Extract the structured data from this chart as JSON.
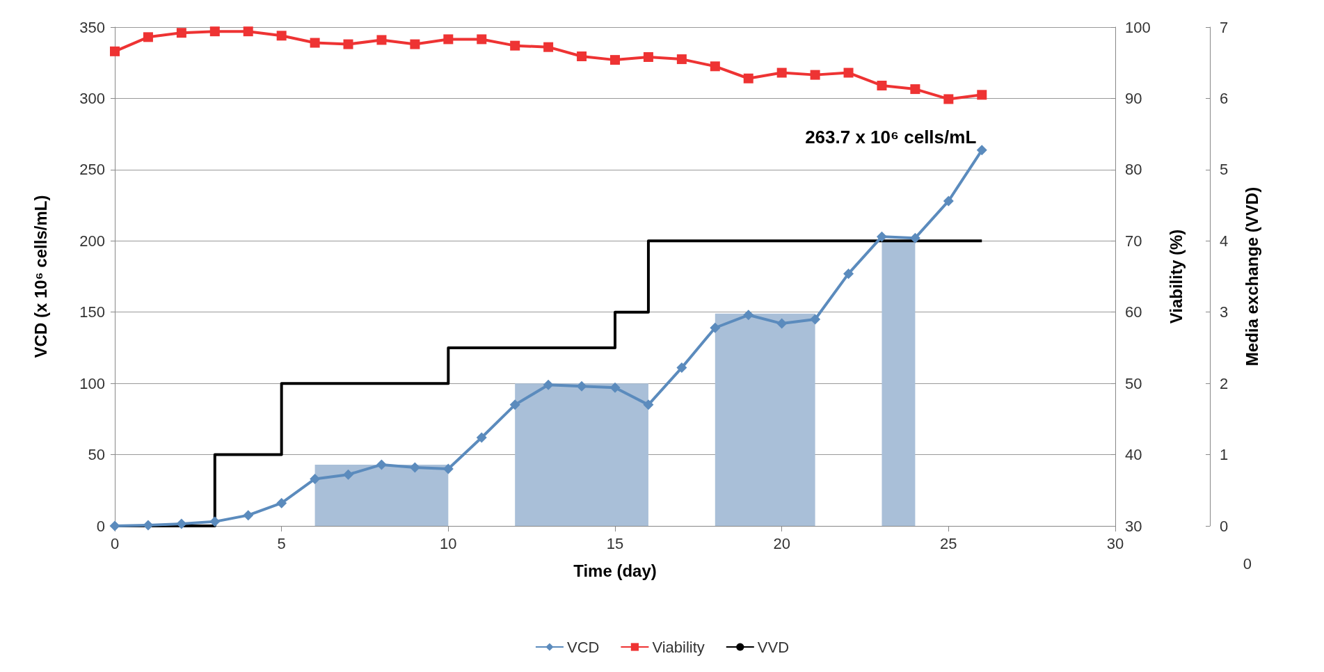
{
  "chart_data": {
    "type": "line",
    "xlabel": "Time (day)",
    "ylabel": "VCD (x 10⁶ cells/mL)",
    "y2label": "Viability (%)",
    "y3label": "Media exchange (VVD)",
    "xlim": [
      0,
      30
    ],
    "xticks": [
      0,
      5,
      10,
      15,
      20,
      25,
      30
    ],
    "ylim": [
      0,
      350
    ],
    "yticks": [
      0,
      50,
      100,
      150,
      200,
      250,
      300,
      350
    ],
    "y2lim": [
      30,
      100
    ],
    "y2ticks": [
      30,
      40,
      50,
      60,
      70,
      80,
      90,
      100
    ],
    "y3lim": [
      0,
      7
    ],
    "y3ticks": [
      0,
      1,
      2,
      3,
      4,
      5,
      6,
      7
    ],
    "grid": "y",
    "legend": "bottom",
    "annotations": [
      {
        "text": "263.7 x 10⁶ cells/mL",
        "x": 26,
        "y": 263.7
      },
      "0"
    ],
    "series": [
      {
        "type": "area",
        "color": "#a9bfd8",
        "x": [
          6,
          10,
          11,
          12,
          16,
          17,
          18,
          21,
          22,
          23,
          24
        ],
        "values": [
          43,
          43,
          null,
          100,
          100,
          null,
          149,
          149,
          null,
          200,
          200
        ]
      },
      {
        "name": "VCD",
        "color": "#5b8bbd",
        "marker": "diamond",
        "x": [
          0,
          1,
          2,
          3,
          4,
          5,
          6,
          7,
          8,
          9,
          10,
          11,
          12,
          13,
          14,
          15,
          16,
          17,
          18,
          19,
          20,
          21,
          22,
          23,
          24,
          25,
          26
        ],
        "values": [
          0,
          0.5,
          1.5,
          3,
          7.5,
          16,
          33,
          36,
          43,
          41,
          40,
          62,
          85,
          99,
          98,
          97,
          85,
          111,
          139,
          148,
          142,
          145,
          177,
          203,
          202,
          228,
          263.7
        ]
      },
      {
        "name": "Viability",
        "type": "line",
        "axis": "y2",
        "color": "#ee3333",
        "marker": "square",
        "x": [
          0,
          1,
          2,
          3,
          4,
          5,
          6,
          7,
          8,
          9,
          10,
          11,
          12,
          13,
          14,
          15,
          16,
          17,
          18,
          19,
          20,
          21,
          22,
          23,
          24,
          25,
          26
        ],
        "values": [
          96.6,
          98.6,
          99.2,
          99.4,
          99.4,
          98.8,
          97.8,
          97.6,
          98.2,
          97.6,
          98.3,
          98.3,
          97.4,
          97.2,
          95.9,
          95.4,
          95.8,
          95.5,
          94.5,
          92.8,
          93.6,
          93.3,
          93.6,
          91.8,
          91.3,
          89.9,
          90.5
        ]
      },
      {
        "name": "VVD",
        "type": "step",
        "axis": "y3",
        "color": "#000000",
        "marker": "none",
        "x": [
          0,
          3,
          5,
          10,
          15,
          16,
          26
        ],
        "values": [
          0,
          1,
          2,
          2.5,
          3,
          4,
          4
        ]
      }
    ]
  }
}
